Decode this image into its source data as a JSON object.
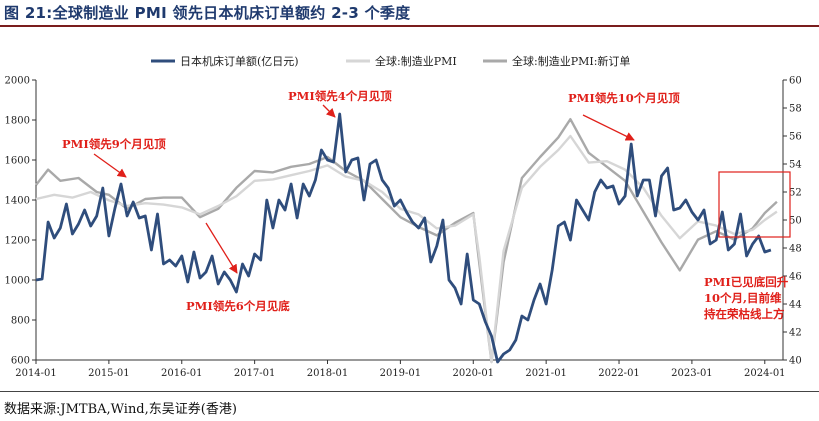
{
  "figure": {
    "title": "图 21:全球制造业 PMI 领先日本机床订单额约 2-3 个季度",
    "source": "数据来源:JMTBA,Wind,东吴证券(香港)"
  },
  "chart_data": {
    "type": "line",
    "title": "图 21:全球制造业 PMI 领先日本机床订单额约 2-3 个季度",
    "legend_position": "top",
    "grid": false,
    "x_ticks": [
      "2014-01",
      "2015-01",
      "2016-01",
      "2017-01",
      "2018-01",
      "2019-01",
      "2020-01",
      "2021-01",
      "2022-01",
      "2023-01",
      "2024-01"
    ],
    "xlim": [
      "2014-01",
      "2024-04"
    ],
    "y_left": {
      "min": 600,
      "max": 2000,
      "ticks": [
        600,
        800,
        1000,
        1200,
        1400,
        1600,
        1800,
        2000
      ]
    },
    "y_right": {
      "min": 40,
      "max": 60,
      "ticks": [
        40,
        42,
        44,
        46,
        48,
        50,
        52,
        54,
        56,
        58,
        60
      ]
    },
    "series": [
      {
        "name": "日本机床订单额(亿日元)",
        "axis": "left",
        "color": "#2f4d7c",
        "points": [
          [
            "2014-01",
            1000
          ],
          [
            "2014-02",
            1005
          ],
          [
            "2014-03",
            1290
          ],
          [
            "2014-04",
            1210
          ],
          [
            "2014-05",
            1260
          ],
          [
            "2014-06",
            1380
          ],
          [
            "2014-07",
            1230
          ],
          [
            "2014-08",
            1280
          ],
          [
            "2014-09",
            1350
          ],
          [
            "2014-10",
            1270
          ],
          [
            "2014-11",
            1320
          ],
          [
            "2014-12",
            1460
          ],
          [
            "2015-01",
            1220
          ],
          [
            "2015-02",
            1360
          ],
          [
            "2015-03",
            1480
          ],
          [
            "2015-04",
            1320
          ],
          [
            "2015-05",
            1390
          ],
          [
            "2015-06",
            1310
          ],
          [
            "2015-07",
            1320
          ],
          [
            "2015-08",
            1150
          ],
          [
            "2015-09",
            1330
          ],
          [
            "2015-10",
            1080
          ],
          [
            "2015-11",
            1100
          ],
          [
            "2015-12",
            1070
          ],
          [
            "2016-01",
            1120
          ],
          [
            "2016-02",
            990
          ],
          [
            "2016-03",
            1140
          ],
          [
            "2016-04",
            1010
          ],
          [
            "2016-05",
            1040
          ],
          [
            "2016-06",
            1120
          ],
          [
            "2016-07",
            980
          ],
          [
            "2016-08",
            1040
          ],
          [
            "2016-09",
            1000
          ],
          [
            "2016-10",
            940
          ],
          [
            "2016-11",
            1080
          ],
          [
            "2016-12",
            1020
          ],
          [
            "2017-01",
            1130
          ],
          [
            "2017-02",
            1100
          ],
          [
            "2017-03",
            1400
          ],
          [
            "2017-04",
            1260
          ],
          [
            "2017-05",
            1400
          ],
          [
            "2017-06",
            1350
          ],
          [
            "2017-07",
            1480
          ],
          [
            "2017-08",
            1310
          ],
          [
            "2017-09",
            1480
          ],
          [
            "2017-10",
            1420
          ],
          [
            "2017-11",
            1500
          ],
          [
            "2017-12",
            1650
          ],
          [
            "2018-01",
            1600
          ],
          [
            "2018-02",
            1590
          ],
          [
            "2018-03",
            1830
          ],
          [
            "2018-04",
            1540
          ],
          [
            "2018-05",
            1600
          ],
          [
            "2018-06",
            1610
          ],
          [
            "2018-07",
            1400
          ],
          [
            "2018-08",
            1580
          ],
          [
            "2018-09",
            1600
          ],
          [
            "2018-10",
            1500
          ],
          [
            "2018-11",
            1460
          ],
          [
            "2018-12",
            1370
          ],
          [
            "2019-01",
            1400
          ],
          [
            "2019-02",
            1340
          ],
          [
            "2019-03",
            1290
          ],
          [
            "2019-04",
            1260
          ],
          [
            "2019-05",
            1310
          ],
          [
            "2019-06",
            1090
          ],
          [
            "2019-07",
            1170
          ],
          [
            "2019-08",
            1300
          ],
          [
            "2019-09",
            1000
          ],
          [
            "2019-10",
            960
          ],
          [
            "2019-11",
            880
          ],
          [
            "2019-12",
            1130
          ],
          [
            "2020-01",
            900
          ],
          [
            "2020-02",
            880
          ],
          [
            "2020-03",
            790
          ],
          [
            "2020-04",
            720
          ],
          [
            "2020-05",
            540
          ],
          [
            "2020-06",
            630
          ],
          [
            "2020-07",
            650
          ],
          [
            "2020-08",
            700
          ],
          [
            "2020-09",
            820
          ],
          [
            "2020-10",
            800
          ],
          [
            "2020-11",
            900
          ],
          [
            "2020-12",
            980
          ],
          [
            "2021-01",
            880
          ],
          [
            "2021-02",
            1050
          ],
          [
            "2021-03",
            1270
          ],
          [
            "2021-04",
            1290
          ],
          [
            "2021-05",
            1200
          ],
          [
            "2021-06",
            1400
          ],
          [
            "2021-07",
            1350
          ],
          [
            "2021-08",
            1300
          ],
          [
            "2021-09",
            1440
          ],
          [
            "2021-10",
            1500
          ],
          [
            "2021-11",
            1460
          ],
          [
            "2021-12",
            1470
          ],
          [
            "2022-01",
            1380
          ],
          [
            "2022-02",
            1420
          ],
          [
            "2022-03",
            1680
          ],
          [
            "2022-04",
            1420
          ],
          [
            "2022-05",
            1500
          ],
          [
            "2022-06",
            1500
          ],
          [
            "2022-07",
            1320
          ],
          [
            "2022-08",
            1520
          ],
          [
            "2022-09",
            1560
          ],
          [
            "2022-10",
            1350
          ],
          [
            "2022-11",
            1360
          ],
          [
            "2022-12",
            1400
          ],
          [
            "2023-01",
            1340
          ],
          [
            "2023-02",
            1300
          ],
          [
            "2023-03",
            1350
          ],
          [
            "2023-04",
            1180
          ],
          [
            "2023-05",
            1200
          ],
          [
            "2023-06",
            1340
          ],
          [
            "2023-07",
            1150
          ],
          [
            "2023-08",
            1180
          ],
          [
            "2023-09",
            1330
          ],
          [
            "2023-10",
            1120
          ],
          [
            "2023-11",
            1180
          ],
          [
            "2023-12",
            1220
          ],
          [
            "2024-01",
            1140
          ],
          [
            "2024-02",
            1150
          ]
        ]
      },
      {
        "name": "全球:制造业PMI",
        "axis": "right",
        "color": "#d6d6d6",
        "points": [
          [
            "2014-01",
            51.5
          ],
          [
            "2014-04",
            51.8
          ],
          [
            "2014-07",
            51.6
          ],
          [
            "2014-10",
            52.0
          ],
          [
            "2015-01",
            51.4
          ],
          [
            "2015-04",
            51.0
          ],
          [
            "2015-07",
            51.2
          ],
          [
            "2015-10",
            51.1
          ],
          [
            "2016-01",
            50.9
          ],
          [
            "2016-04",
            50.4
          ],
          [
            "2016-07",
            51.0
          ],
          [
            "2016-10",
            51.7
          ],
          [
            "2017-01",
            52.8
          ],
          [
            "2017-04",
            52.9
          ],
          [
            "2017-07",
            53.2
          ],
          [
            "2017-10",
            53.5
          ],
          [
            "2018-01",
            53.9
          ],
          [
            "2018-04",
            53.1
          ],
          [
            "2018-07",
            52.8
          ],
          [
            "2018-10",
            52.0
          ],
          [
            "2019-01",
            50.8
          ],
          [
            "2019-04",
            50.4
          ],
          [
            "2019-07",
            49.4
          ],
          [
            "2019-10",
            49.6
          ],
          [
            "2020-01",
            50.4
          ],
          [
            "2020-02",
            47.4
          ],
          [
            "2020-04",
            39.6
          ],
          [
            "2020-06",
            47.8
          ],
          [
            "2020-09",
            52.3
          ],
          [
            "2020-12",
            53.8
          ],
          [
            "2021-03",
            55.0
          ],
          [
            "2021-05",
            56.0
          ],
          [
            "2021-08",
            54.1
          ],
          [
            "2021-11",
            54.2
          ],
          [
            "2022-02",
            53.6
          ],
          [
            "2022-05",
            52.3
          ],
          [
            "2022-08",
            50.3
          ],
          [
            "2022-11",
            48.7
          ],
          [
            "2023-02",
            49.9
          ],
          [
            "2023-05",
            49.6
          ],
          [
            "2023-08",
            49.0
          ],
          [
            "2023-11",
            49.3
          ],
          [
            "2024-01",
            50.0
          ],
          [
            "2024-03",
            50.6
          ]
        ]
      },
      {
        "name": "全球:制造业PMI:新订单",
        "axis": "right",
        "color": "#a9a9a9",
        "points": [
          [
            "2014-01",
            52.5
          ],
          [
            "2014-03",
            53.6
          ],
          [
            "2014-05",
            52.8
          ],
          [
            "2014-08",
            53.0
          ],
          [
            "2014-11",
            52.0
          ],
          [
            "2015-01",
            51.8
          ],
          [
            "2015-04",
            50.8
          ],
          [
            "2015-07",
            51.5
          ],
          [
            "2015-10",
            51.6
          ],
          [
            "2016-01",
            51.6
          ],
          [
            "2016-04",
            50.2
          ],
          [
            "2016-07",
            50.8
          ],
          [
            "2016-10",
            52.3
          ],
          [
            "2017-01",
            53.5
          ],
          [
            "2017-04",
            53.4
          ],
          [
            "2017-07",
            53.8
          ],
          [
            "2017-10",
            54.0
          ],
          [
            "2018-01",
            54.5
          ],
          [
            "2018-04",
            53.5
          ],
          [
            "2018-07",
            52.8
          ],
          [
            "2018-10",
            51.5
          ],
          [
            "2019-01",
            50.2
          ],
          [
            "2019-04",
            49.5
          ],
          [
            "2019-07",
            48.9
          ],
          [
            "2019-10",
            49.8
          ],
          [
            "2020-01",
            50.5
          ],
          [
            "2020-02",
            46.9
          ],
          [
            "2020-04",
            34.9
          ],
          [
            "2020-06",
            47.0
          ],
          [
            "2020-09",
            53.0
          ],
          [
            "2020-12",
            54.5
          ],
          [
            "2021-03",
            55.9
          ],
          [
            "2021-05",
            57.2
          ],
          [
            "2021-08",
            54.8
          ],
          [
            "2021-11",
            53.8
          ],
          [
            "2022-02",
            52.8
          ],
          [
            "2022-05",
            50.6
          ],
          [
            "2022-08",
            48.4
          ],
          [
            "2022-11",
            46.4
          ],
          [
            "2023-02",
            48.6
          ],
          [
            "2023-05",
            49.2
          ],
          [
            "2023-08",
            48.6
          ],
          [
            "2023-11",
            49.4
          ],
          [
            "2024-01",
            50.5
          ],
          [
            "2024-03",
            51.3
          ]
        ]
      }
    ],
    "annotations": [
      {
        "text": "PMI领先9个月见顶",
        "at": "2014-10",
        "target": [
          "2015-01",
          1500
        ]
      },
      {
        "text": "PMI领先6个月见底",
        "at": "2016-03",
        "target": [
          "2016-10",
          940
        ]
      },
      {
        "text": "PMI领先4个月见顶",
        "at": "2017-08",
        "target": [
          "2018-02",
          1800
        ]
      },
      {
        "text": "PMI领先10个月见顶",
        "at": "2021-08",
        "target": [
          "2022-03",
          1650
        ]
      },
      {
        "text": "PMI已见底回升10个月,目前维持在荣枯线上方",
        "at": "2023-06",
        "box": {
          "from": "2023-04",
          "to": "2024-04",
          "y_right": [
            46.8,
            52.8
          ]
        }
      }
    ]
  },
  "labels": {
    "ann1": "PMI领先9个月见顶",
    "ann2": "PMI领先6个月见底",
    "ann3": "PMI领先4个月见顶",
    "ann4": "PMI领先10个月见顶",
    "ann5_l1": "PMI已见底回升",
    "ann5_l2": "10个月,目前维",
    "ann5_l3": "持在荣枯线上方"
  }
}
